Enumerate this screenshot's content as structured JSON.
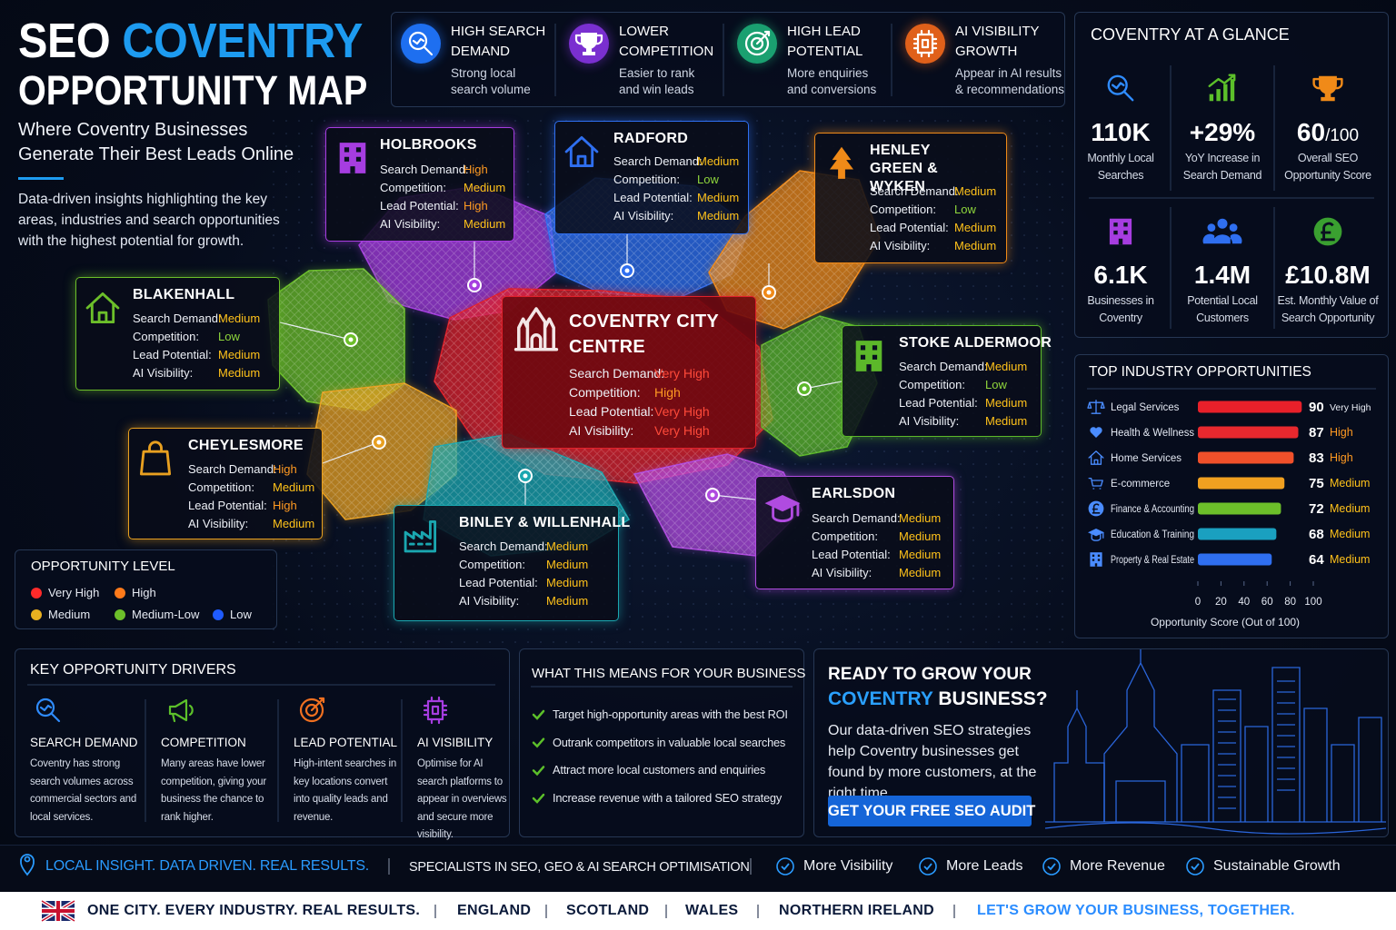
{
  "header": {
    "title_a": "SEO",
    "title_b": "COVENTRY",
    "title_line2": "OPPORTUNITY MAP",
    "subtitle": "Where Coventry Businesses Generate Their Best Leads Online",
    "intro": "Data-driven insights highlighting the key areas, industries and search opportunities with the highest potential for growth."
  },
  "features": [
    {
      "title": "HIGH SEARCH DEMAND",
      "text": "Strong local search volume"
    },
    {
      "title": "LOWER COMPETITION",
      "text": "Easier to rank and win leads"
    },
    {
      "title": "HIGH LEAD POTENTIAL",
      "text": "More enquiries and conversions"
    },
    {
      "title": "AI VISIBILITY GROWTH",
      "text": "Appear in AI results & recommendations"
    }
  ],
  "glance": {
    "title": "COVENTRY AT A GLANCE",
    "stats": [
      {
        "value": "110K",
        "label": "Monthly Local Searches"
      },
      {
        "value": "+29%",
        "label": "YoY Increase in Search Demand"
      },
      {
        "value": "60",
        "suffix": "/100",
        "label": "Overall SEO Opportunity Score"
      },
      {
        "value": "6.1K",
        "label": "Businesses in Coventry"
      },
      {
        "value": "1.4M",
        "label": "Potential Local Customers"
      },
      {
        "value": "£10.8M",
        "label": "Est. Monthly Value of Search Opportunity"
      }
    ]
  },
  "area_fields": [
    "Search Demand:",
    "Competition:",
    "Lead Potential:",
    "AI Visibility:"
  ],
  "level_text_colors": {
    "Very High": "#ff4a3a",
    "High": "#ff9a22",
    "Medium": "#ffc21a",
    "Low": "#8fd63c"
  },
  "areas": [
    {
      "name": "HOLBROOKS",
      "color": "#a63de0",
      "values": [
        "High",
        "Medium",
        "High",
        "Medium"
      ]
    },
    {
      "name": "RADFORD",
      "color": "#2f6ff0",
      "values": [
        "Medium",
        "Low",
        "Medium",
        "Medium"
      ]
    },
    {
      "name": "HENLEY GREEN & WYKEN",
      "color": "#f08a18",
      "values": [
        "Medium",
        "Low",
        "Medium",
        "Medium"
      ]
    },
    {
      "name": "BLAKENHALL",
      "color": "#6cbf2a",
      "values": [
        "Medium",
        "Low",
        "Medium",
        "Medium"
      ]
    },
    {
      "name": "COVENTRY CITY CENTRE",
      "color": "#e0202a",
      "values": [
        "Very High",
        "High",
        "Very High",
        "Very High"
      ]
    },
    {
      "name": "STOKE ALDERMOOR",
      "color": "#5cb82a",
      "values": [
        "Medium",
        "Low",
        "Medium",
        "Medium"
      ]
    },
    {
      "name": "CHEYLESMORE",
      "color": "#e8a020",
      "values": [
        "High",
        "Medium",
        "High",
        "Medium"
      ]
    },
    {
      "name": "BINLEY & WILLENHALL",
      "color": "#1aa7b0",
      "values": [
        "Medium",
        "Medium",
        "Medium",
        "Medium"
      ]
    },
    {
      "name": "EARLSDON",
      "color": "#b04be0",
      "values": [
        "Medium",
        "Medium",
        "Medium",
        "Medium"
      ]
    }
  ],
  "legend": {
    "title": "OPPORTUNITY LEVEL",
    "items": [
      {
        "label": "Very High",
        "color": "#ff2a2a"
      },
      {
        "label": "High",
        "color": "#ff7a1a"
      },
      {
        "label": "Medium",
        "color": "#e8b020"
      },
      {
        "label": "Medium-Low",
        "color": "#6cbf2a"
      },
      {
        "label": "Low",
        "color": "#1f5bff"
      }
    ]
  },
  "industries": {
    "title": "TOP INDUSTRY OPPORTUNITIES",
    "chart": {
      "type": "bar",
      "categories": [
        "Legal Services",
        "Health & Wellness",
        "Home Services",
        "E-commerce",
        "Finance & Accounting",
        "Education & Training",
        "Property & Real Estate"
      ],
      "values": [
        90,
        87,
        83,
        75,
        72,
        68,
        64
      ],
      "levels": [
        "Very High",
        "High",
        "High",
        "Medium",
        "Medium",
        "Medium",
        "Medium"
      ],
      "colors": [
        "#e8202a",
        "#e8282e",
        "#f0502a",
        "#f0a020",
        "#6cbf2a",
        "#1aa0c0",
        "#2f6ff0"
      ],
      "xlim": [
        0,
        100
      ],
      "xticks": [
        0,
        20,
        40,
        60,
        80,
        100
      ],
      "xlabel": "Opportunity Score (Out of 100)"
    }
  },
  "drivers": {
    "title": "KEY OPPORTUNITY DRIVERS",
    "items": [
      {
        "title": "SEARCH DEMAND",
        "text": "Coventry has strong search volumes across commercial sectors and local services."
      },
      {
        "title": "COMPETITION",
        "text": "Many areas have lower competition, giving your business the chance to rank higher."
      },
      {
        "title": "LEAD POTENTIAL",
        "text": "High-intent searches in key locations convert into quality leads and revenue."
      },
      {
        "title": "AI VISIBILITY",
        "text": "Optimise for AI search platforms to appear in overviews and secure more visibility."
      }
    ]
  },
  "meaning": {
    "title": "WHAT THIS MEANS FOR YOUR BUSINESS",
    "items": [
      "Target high-opportunity areas with the best ROI",
      "Outrank competitors in valuable local searches",
      "Attract more local customers and enquiries",
      "Increase revenue with a tailored SEO strategy"
    ]
  },
  "cta": {
    "title": "READY TO GROW YOUR",
    "title_highlight": "COVENTRY",
    "title_end": "BUSINESS?",
    "text": "Our data-driven SEO strategies help Coventry businesses get found by more customers, at the right time.",
    "button": "GET YOUR FREE SEO AUDIT"
  },
  "footer": {
    "slogan": "LOCAL INSIGHT. DATA DRIVEN. REAL RESULTS.",
    "specialism": "SPECIALISTS IN SEO, GEO & AI SEARCH OPTIMISATION",
    "benefits": [
      "More Visibility",
      "More Leads",
      "More Revenue",
      "Sustainable Growth"
    ]
  },
  "bottom": {
    "tagline": "ONE CITY. EVERY INDUSTRY. REAL RESULTS.",
    "regions": [
      "ENGLAND",
      "SCOTLAND",
      "WALES",
      "NORTHERN IRELAND"
    ],
    "closing": "LET'S GROW YOUR BUSINESS, TOGETHER."
  }
}
